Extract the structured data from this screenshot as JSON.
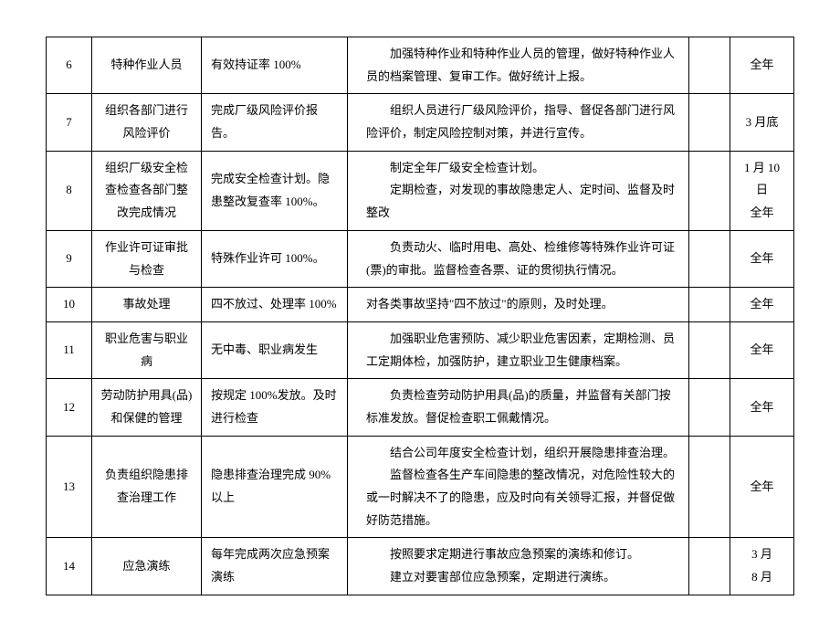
{
  "table": {
    "columns": {
      "num_width": 50,
      "item_width": 120,
      "target_width": 160,
      "blank_width": 45,
      "time_width": 70
    },
    "rows": [
      {
        "num": "6",
        "item": "特种作业人员",
        "target": "有效持证率 100%",
        "measure": "加强特种作业和特种作业人员的管理，做好特种作业人员的档案管理、复审工作。做好统计上报。",
        "blank": "",
        "time": "全年"
      },
      {
        "num": "7",
        "item": "组织各部门进行风险评价",
        "target": "完成厂级风险评价报告。",
        "measure": "组织人员进行厂级风险评价，指导、督促各部门进行风险评价，制定风险控制对策，并进行宣传。",
        "blank": "",
        "time": "3 月底"
      },
      {
        "num": "8",
        "item": "组织厂级安全检查检查各部门整改完成情况",
        "target": "完成安全检查计划。隐患整改复查率 100%。",
        "measure_l1": "制定全年厂级安全检查计划。",
        "measure_l2": "定期检查，对发现的事故隐患定人、定时间、监督及时整改",
        "blank": "",
        "time_l1": "1 月 10 日",
        "time_l2": "全年"
      },
      {
        "num": "9",
        "item": "作业许可证审批与检查",
        "target": "特殊作业许可 100%。",
        "measure": "负责动火、临时用电、高处、检维修等特殊作业许可证(票)的审批。监督检查各票、证的贯彻执行情况。",
        "blank": "",
        "time": "全年"
      },
      {
        "num": "10",
        "item": "事故处理",
        "target": "四不放过、处理率 100%",
        "measure": "对各类事故坚持\"四不放过\"的原则，及时处理。",
        "blank": "",
        "time": "全年"
      },
      {
        "num": "11",
        "item": "职业危害与职业病",
        "target": "无中毒、职业病发生",
        "measure": "加强职业危害预防、减少职业危害因素，定期检测、员工定期体检，加强防护，建立职业卫生健康档案。",
        "blank": "",
        "time": "全年"
      },
      {
        "num": "12",
        "item": "劳动防护用具(品)和保健的管理",
        "target": "按规定 100%发放。及时进行检查",
        "measure": "负责检查劳动防护用具(品)的质量，并监督有关部门按标准发放。督促检查职工佩戴情况。",
        "blank": "",
        "time": "全年"
      },
      {
        "num": "13",
        "item": "负责组织隐患排查治理工作",
        "target": "隐患排查治理完成 90%以上",
        "measure_l1": "结合公司年度安全检查计划，组织开展隐患排查治理。",
        "measure_l2": "监督检查各生产车间隐患的整改情况，对危险性较大的或一时解决不了的隐患，应及时向有关领导汇报，并督促做好防范措施。",
        "blank": "",
        "time": "全年"
      },
      {
        "num": "14",
        "item": "应急演练",
        "target": "每年完成两次应急预案演练",
        "measure_l1": "按照要求定期进行事故应急预案的演练和修订。",
        "measure_l2": "建立对要害部位应急预案，定期进行演练。",
        "blank": "",
        "time_l1": "3 月",
        "time_l2": "8 月"
      }
    ]
  }
}
